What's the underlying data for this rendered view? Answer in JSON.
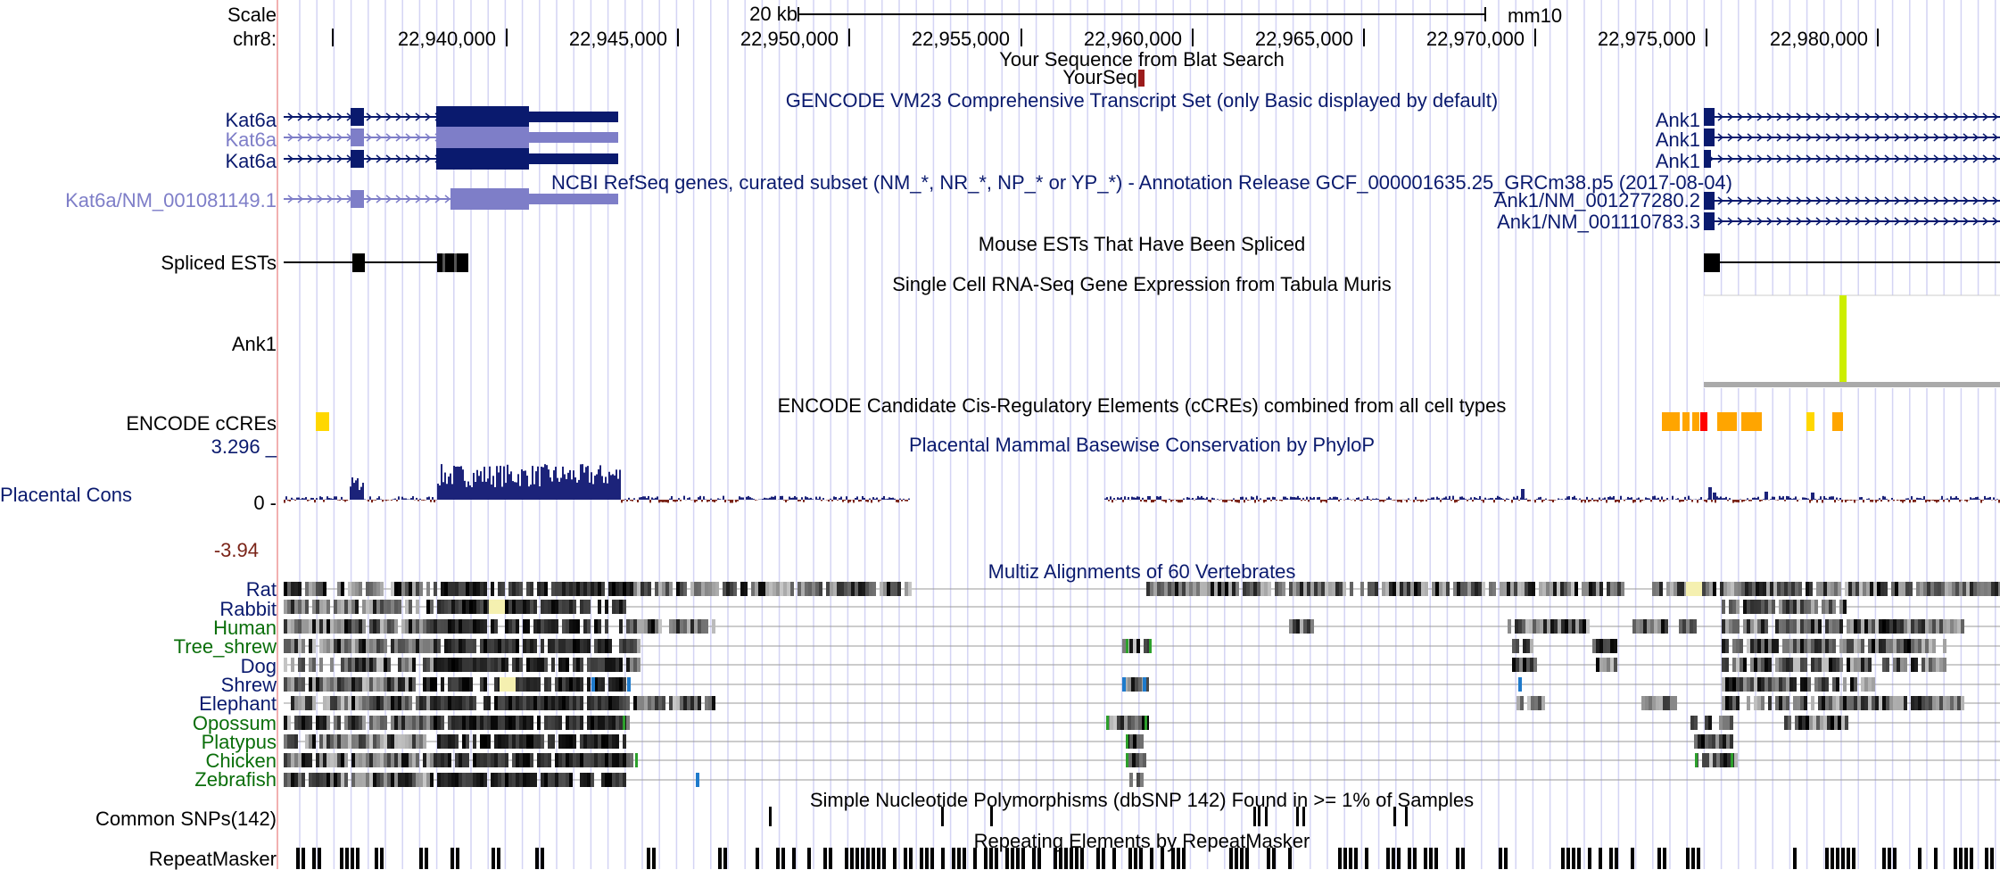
{
  "colors": {
    "navy": "#0a1a6e",
    "lavender": "#7e7ec8",
    "green": "#0a6e0a",
    "maroon": "#7a2418",
    "gridline": "#c8c8f0",
    "separator": "#f2b0b0",
    "orange": "#ffa500",
    "yellow": "#ffd700",
    "red": "#ff0000",
    "lime": "#ccee00",
    "blue_insert": "#1e7acb",
    "green_insert": "#2ca02c"
  },
  "ruler": {
    "scale_label": "Scale",
    "scale_bar_label": "20 kb",
    "assembly": "mm10",
    "chrom_label": "chr8:",
    "ticks": [
      "22,940,000",
      "22,945,000",
      "22,950,000",
      "22,955,000",
      "22,960,000",
      "22,965,000",
      "22,970,000",
      "22,975,000",
      "22,980,000"
    ]
  },
  "tracks": {
    "blat": {
      "title": "Your Sequence from Blat Search",
      "item": "YourSeq"
    },
    "gencode": {
      "title": "GENCODE VM23 Comprehensive Transcript Set (only Basic displayed by default)",
      "left_items": [
        "Kat6a",
        "Kat6a",
        "Kat6a"
      ],
      "right_items": [
        "Ank1",
        "Ank1",
        "Ank1"
      ]
    },
    "refseq": {
      "title": "NCBI RefSeq genes, curated subset (NM_*, NR_*, NP_* or YP_*) - Annotation Release GCF_000001635.25_GRCm38.p5 (2017-08-04)",
      "left_item": "Kat6a/NM_001081149.1",
      "right_items": [
        "Ank1/NM_001277280.2",
        "Ank1/NM_001110783.3"
      ]
    },
    "ests": {
      "title": "Mouse ESTs That Have Been Spliced",
      "label": "Spliced ESTs"
    },
    "tabula": {
      "title": "Single Cell RNA-Seq Gene Expression from Tabula Muris",
      "label": "Ank1"
    },
    "ccre": {
      "title": "ENCODE Candidate Cis-Regulatory Elements (cCREs) combined from all cell types",
      "label": "ENCODE cCREs"
    },
    "phylop": {
      "title": "Placental Mammal Basewise Conservation by PhyloP",
      "label": "Placental Cons",
      "max": "3.296 _",
      "zero": "0 -",
      "min": "-3.94"
    },
    "multiz": {
      "title": "Multiz Alignments of 60 Vertebrates",
      "species": [
        {
          "name": "Rat",
          "group": "mammal"
        },
        {
          "name": "Rabbit",
          "group": "mammal"
        },
        {
          "name": "Human",
          "group": "primate"
        },
        {
          "name": "Tree_shrew",
          "group": "primate"
        },
        {
          "name": "Dog",
          "group": "mammal"
        },
        {
          "name": "Shrew",
          "group": "mammal"
        },
        {
          "name": "Elephant",
          "group": "mammal"
        },
        {
          "name": "Opossum",
          "group": "vertebrate"
        },
        {
          "name": "Platypus",
          "group": "vertebrate"
        },
        {
          "name": "Chicken",
          "group": "vertebrate"
        },
        {
          "name": "Zebrafish",
          "group": "vertebrate"
        }
      ]
    },
    "snps": {
      "title": "Simple Nucleotide Polymorphisms (dbSNP 142) Found in >= 1% of Samples",
      "label": "Common SNPs(142)"
    },
    "repeats": {
      "title": "Repeating Elements by RepeatMasker",
      "label": "RepeatMasker"
    }
  }
}
